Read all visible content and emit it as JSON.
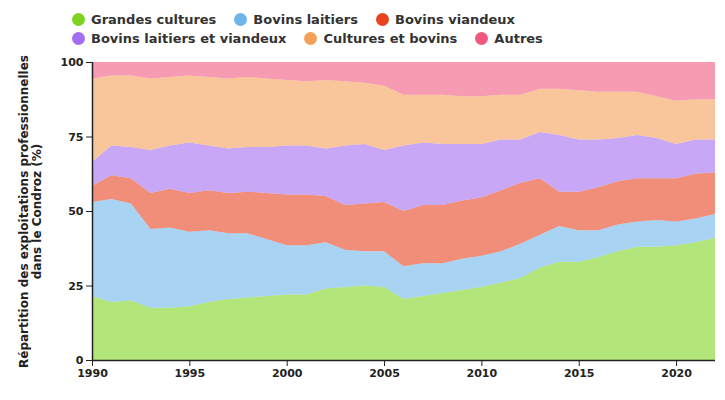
{
  "chart_data": {
    "type": "area",
    "stacked": true,
    "legend": "top",
    "y_label": "Répartition des exploitations professionnelles\ndans le Condroz (%)",
    "x": [
      1990,
      1991,
      1992,
      1993,
      1994,
      1995,
      1996,
      1997,
      1998,
      1999,
      2000,
      2001,
      2002,
      2003,
      2004,
      2005,
      2006,
      2007,
      2008,
      2009,
      2010,
      2011,
      2012,
      2013,
      2014,
      2015,
      2016,
      2017,
      2018,
      2019,
      2020,
      2021,
      2022
    ],
    "xlim": [
      1990,
      2022
    ],
    "xticks": [
      1990,
      1995,
      2000,
      2005,
      2010,
      2015,
      2020
    ],
    "ylim": [
      0,
      100
    ],
    "yticks": [
      0,
      25,
      50,
      75,
      100
    ],
    "series": [
      {
        "name": "Grandes cultures",
        "color": "#7ed321",
        "values": [
          21.5,
          19.5,
          20,
          17.5,
          17.5,
          18,
          19.5,
          20.5,
          21,
          21.5,
          22,
          22,
          24,
          24.5,
          25,
          24.5,
          20.5,
          21.5,
          22.5,
          23.5,
          24.5,
          26,
          27.5,
          31,
          33,
          33,
          34.5,
          36.5,
          38,
          38,
          38.5,
          39.5,
          41
        ]
      },
      {
        "name": "Bovins laitiers",
        "color": "#6fb5ea",
        "values": [
          31.5,
          34.5,
          32.5,
          26.5,
          27,
          25,
          24,
          22,
          21.5,
          19,
          16.5,
          16.5,
          15.5,
          12.5,
          11.5,
          12,
          11,
          11,
          10,
          10.5,
          10.5,
          10.5,
          11.5,
          11,
          12,
          10.5,
          9,
          9,
          8.5,
          9,
          8,
          8,
          8
        ]
      },
      {
        "name": "Bovins viandeux",
        "color": "#e8431f",
        "values": [
          5.5,
          8,
          8.5,
          12,
          13,
          13,
          13.5,
          13.5,
          14,
          15.5,
          17,
          17,
          15.5,
          15,
          16,
          16.5,
          18.5,
          19.5,
          19.5,
          19.5,
          19.5,
          20.5,
          20.5,
          19,
          11.5,
          13,
          14.5,
          14.5,
          14.5,
          14,
          14.5,
          15,
          14
        ]
      },
      {
        "name": "Bovins laitiers et viandeux",
        "color": "#a36ef0",
        "values": [
          8,
          10,
          10.5,
          14.5,
          14.5,
          17,
          15,
          15,
          15,
          15.5,
          16.5,
          16.5,
          16,
          20,
          20,
          17.5,
          22,
          21,
          20.5,
          19,
          18,
          17,
          14.5,
          15.5,
          19,
          17.5,
          16,
          14.5,
          14.5,
          13.5,
          11.5,
          11.5,
          11
        ]
      },
      {
        "name": "Cultures et bovins",
        "color": "#f5a05a",
        "values": [
          28,
          23.5,
          24,
          24,
          23,
          22.5,
          23,
          23.5,
          23.5,
          23,
          22,
          21.5,
          23,
          21.5,
          20.5,
          21.5,
          17,
          16,
          16.5,
          16,
          16,
          15,
          15,
          14.5,
          15.5,
          16.5,
          16,
          15.5,
          14.5,
          14,
          14.5,
          13.5,
          13.5
        ]
      },
      {
        "name": "Autres",
        "color": "#f0587e",
        "values": [
          5.5,
          4.5,
          4.5,
          5.5,
          5,
          4.5,
          5,
          5.5,
          5,
          5.5,
          6,
          6.5,
          6,
          6.5,
          7,
          8,
          11,
          11,
          11,
          11.5,
          11.5,
          11,
          11,
          9,
          9,
          9.5,
          10,
          10,
          10,
          11.5,
          13,
          12.5,
          12.5
        ]
      }
    ]
  }
}
